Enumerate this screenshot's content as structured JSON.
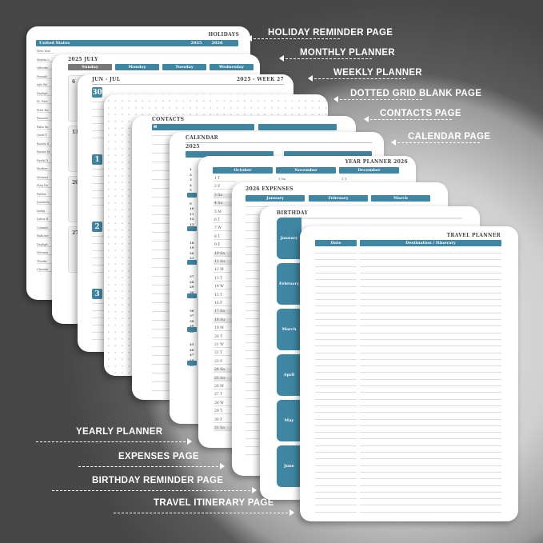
{
  "labels_right": [
    "HOLIDAY REMINDER PAGE",
    "MONTHLY PLANNER",
    "WEEKLY PLANNER",
    "DOTTED GRID BLANK PAGE",
    "CONTACTS PAGE",
    "CALENDAR PAGE"
  ],
  "labels_left": [
    "YEARLY PLANNER",
    "EXPENSES PAGE",
    "BIRTHDAY REMINDER PAGE",
    "TRAVEL ITINERARY PAGE"
  ],
  "holiday": {
    "title": "HOLIDAYS",
    "country": "United States",
    "years": [
      "2025",
      "2026"
    ],
    "items": [
      "New Year",
      "Martin L.",
      "Valentin",
      "Preside",
      "Ash We",
      "Dayligh",
      "St. Patr",
      "First Da",
      "Passove",
      "Palm Su",
      "Good F",
      "Easter S",
      "Easter M",
      "Earth D",
      "Mother",
      "Memori",
      "Flag Da",
      "Father",
      "Juneteen",
      "Indep.",
      "Labor D",
      "Columb",
      "Hallowe",
      "Dayligh",
      "Veteran",
      "Thanks",
      "Christm"
    ]
  },
  "monthly": {
    "title": "2025 JULY",
    "days": [
      "Sunday",
      "Monday",
      "Tuesday",
      "Wednesday"
    ],
    "dates": [
      "6",
      "13",
      "20",
      "27"
    ]
  },
  "weekly": {
    "range": "JUN - JUL",
    "week": "2025 - WEEK 27",
    "days": [
      "30",
      "1",
      "2",
      "3"
    ]
  },
  "contacts": {
    "title": "CONTACTS",
    "icon": "envelope-icon"
  },
  "calendar": {
    "title": "CALENDAR",
    "year": "2025",
    "wk": "WK",
    "weeks": [
      "1",
      "2",
      "3",
      "4",
      "5",
      "9",
      "10",
      "11",
      "12",
      "13",
      "14",
      "18",
      "19",
      "20",
      "21",
      "22",
      "27",
      "28",
      "29",
      "30",
      "31",
      "36",
      "37",
      "38",
      "39",
      "40",
      "45",
      "46",
      "47",
      "48",
      "49"
    ]
  },
  "year_planner": {
    "title": "YEAR PLANNER 2026",
    "months": [
      "October",
      "November",
      "December"
    ],
    "oct_days": [
      "1 T",
      "2 F",
      "3 Sa",
      "4 Su",
      "5 M",
      "6 T",
      "7 W",
      "8 T",
      "9 F",
      "10 Sa",
      "11 Su",
      "12 M",
      "13 T",
      "14 W",
      "15 T",
      "16 F",
      "17 Sa",
      "18 Su",
      "19 M",
      "20 T",
      "21 W",
      "22 T",
      "23 F",
      "24 Sa",
      "25 Su",
      "26 M",
      "27 T",
      "28 W",
      "29 T",
      "30 F",
      "31 Sa"
    ],
    "nov_first": "1 Su",
    "dec_first": "1 T"
  },
  "expenses": {
    "title": "2026 EXPENSES",
    "months": [
      "January",
      "February",
      "March"
    ]
  },
  "birthday": {
    "title": "BIRTHDAY",
    "months": [
      "January",
      "February",
      "March",
      "April",
      "May",
      "June"
    ]
  },
  "travel": {
    "title": "TRAVEL PLANNER",
    "columns": [
      "Date",
      "Destination / Itinerary"
    ]
  },
  "colors": {
    "accent": "#3f86a3",
    "background": "#4b4b4b"
  }
}
